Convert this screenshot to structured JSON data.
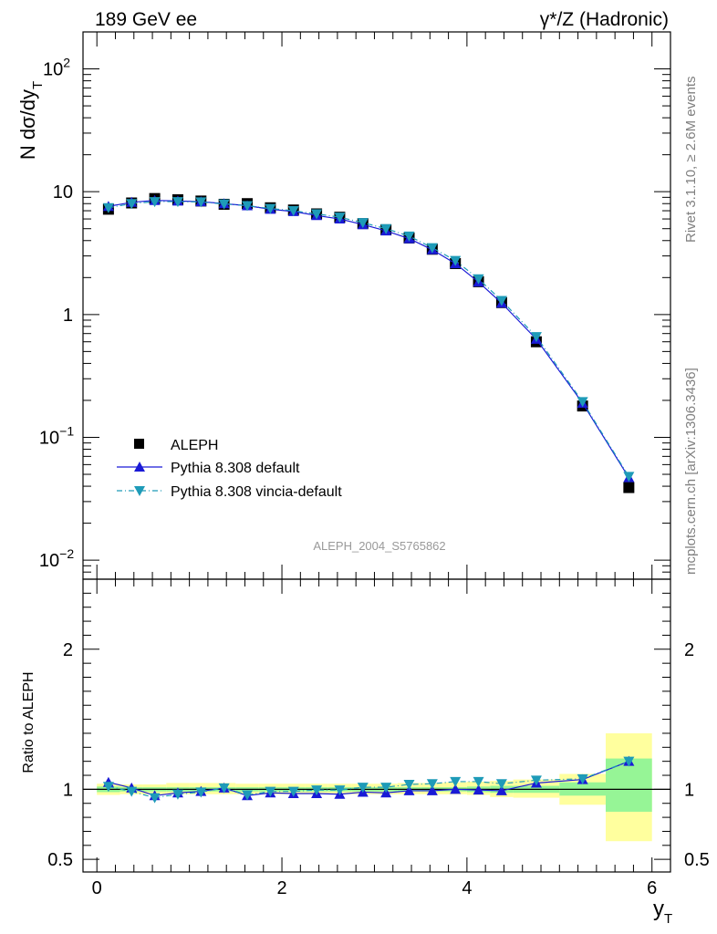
{
  "header": {
    "left": "189 GeV ee",
    "right": "γ*/Z (Hadronic)"
  },
  "side_labels": {
    "top": "Rivet 3.1.10, ≥ 2.6M events",
    "bottom": "mcplots.cern.ch [arXiv:1306.3436]"
  },
  "watermark": "ALEPH_2004_S5765862",
  "y_axis_label_main": "N dσ/dy",
  "y_axis_label_main_sub": "T",
  "y_axis_label_ratio": "Ratio to ALEPH",
  "x_axis_label": "y",
  "x_axis_label_sub": "T",
  "main_ticks": {
    "y": [
      {
        "v": 100,
        "text": "10",
        "sup": "2"
      },
      {
        "v": 10,
        "text": "10",
        "sup": ""
      },
      {
        "v": 1,
        "text": "1",
        "sup": ""
      },
      {
        "v": 0.1,
        "text": "10",
        "sup": "−1"
      },
      {
        "v": 0.01,
        "text": "10",
        "sup": "−2"
      }
    ]
  },
  "ratio_ticks": {
    "y": [
      {
        "v": 2,
        "text": "2"
      },
      {
        "v": 1,
        "text": "1"
      },
      {
        "v": 0.5,
        "text": "0.5"
      }
    ]
  },
  "x_ticks": [
    {
      "v": 0,
      "text": "0"
    },
    {
      "v": 2,
      "text": "2"
    },
    {
      "v": 4,
      "text": "4"
    },
    {
      "v": 6,
      "text": "6"
    }
  ],
  "colors": {
    "aleph": "#000000",
    "pythia": "#1a1ad6",
    "vincia": "#1e9bb8",
    "band_green": "#96f596",
    "band_yellow": "#ffff9e"
  },
  "chart_data": [
    {
      "type": "scatter",
      "xlim": [
        -0.15,
        6.2
      ],
      "ylim": [
        0.007,
        200
      ],
      "log_y": true,
      "legend": "bottom-left",
      "series": [
        {
          "name": "ALEPH",
          "x": [
            0.125,
            0.375,
            0.625,
            0.875,
            1.125,
            1.375,
            1.625,
            1.875,
            2.125,
            2.375,
            2.625,
            2.875,
            3.125,
            3.375,
            3.625,
            3.875,
            4.125,
            4.375,
            4.75,
            5.25,
            5.75
          ],
          "values": [
            7.2,
            8.1,
            8.8,
            8.6,
            8.4,
            7.9,
            8.0,
            7.4,
            7.1,
            6.6,
            6.2,
            5.5,
            4.9,
            4.2,
            3.4,
            2.6,
            1.85,
            1.25,
            0.6,
            0.18,
            0.039
          ]
        },
        {
          "name": "Pythia 8.308 default",
          "x": [
            0.125,
            0.375,
            0.625,
            0.875,
            1.125,
            1.375,
            1.625,
            1.875,
            2.125,
            2.375,
            2.625,
            2.875,
            3.125,
            3.375,
            3.625,
            3.875,
            4.125,
            4.375,
            4.75,
            5.25,
            5.75
          ],
          "values": [
            7.6,
            8.2,
            8.5,
            8.4,
            8.3,
            8.0,
            7.7,
            7.2,
            6.9,
            6.4,
            6.0,
            5.4,
            4.8,
            4.15,
            3.37,
            2.6,
            1.84,
            1.24,
            0.63,
            0.19,
            0.047
          ]
        },
        {
          "name": "Pythia 8.308 vincia-default",
          "x": [
            0.125,
            0.375,
            0.625,
            0.875,
            1.125,
            1.375,
            1.625,
            1.875,
            2.125,
            2.375,
            2.625,
            2.875,
            3.125,
            3.375,
            3.625,
            3.875,
            4.125,
            4.375,
            4.75,
            5.25,
            5.75
          ],
          "values": [
            7.4,
            8.0,
            8.3,
            8.3,
            8.25,
            7.95,
            7.7,
            7.3,
            7.0,
            6.6,
            6.2,
            5.6,
            5.0,
            4.35,
            3.5,
            2.75,
            1.95,
            1.3,
            0.66,
            0.195,
            0.048
          ]
        }
      ]
    },
    {
      "type": "line",
      "xlim": [
        -0.15,
        6.2
      ],
      "ylim": [
        0.41,
        2.5
      ],
      "ylabel": "Ratio to ALEPH",
      "reference_line": 1,
      "bands": {
        "edges": [
          0.0,
          0.25,
          0.5,
          0.75,
          1.0,
          1.25,
          1.5,
          1.75,
          2.0,
          2.25,
          2.5,
          2.75,
          3.0,
          3.25,
          3.5,
          3.75,
          4.0,
          4.25,
          4.5,
          5.0,
          5.5,
          6.0
        ],
        "green_lo": [
          0.98,
          0.985,
          0.985,
          0.985,
          0.985,
          0.985,
          0.985,
          0.985,
          0.985,
          0.985,
          0.985,
          0.985,
          0.985,
          0.985,
          0.985,
          0.985,
          0.98,
          0.975,
          0.975,
          0.955,
          0.84
        ],
        "green_hi": [
          1.02,
          1.015,
          1.015,
          1.015,
          1.015,
          1.015,
          1.015,
          1.015,
          1.015,
          1.015,
          1.015,
          1.015,
          1.015,
          1.015,
          1.015,
          1.015,
          1.02,
          1.025,
          1.025,
          1.05,
          1.22
        ],
        "yellow_lo": [
          0.96,
          0.965,
          0.965,
          0.965,
          0.965,
          0.965,
          0.965,
          0.965,
          0.965,
          0.965,
          0.965,
          0.965,
          0.965,
          0.965,
          0.965,
          0.965,
          0.96,
          0.945,
          0.94,
          0.89,
          0.63
        ],
        "yellow_hi": [
          1.04,
          1.035,
          1.035,
          1.045,
          1.045,
          1.045,
          1.04,
          1.04,
          1.04,
          1.04,
          1.04,
          1.04,
          1.04,
          1.045,
          1.045,
          1.05,
          1.055,
          1.06,
          1.07,
          1.11,
          1.4
        ]
      },
      "series": [
        {
          "name": "Pythia 8.308 default",
          "x": [
            0.125,
            0.375,
            0.625,
            0.875,
            1.125,
            1.375,
            1.625,
            1.875,
            2.125,
            2.375,
            2.625,
            2.875,
            3.125,
            3.375,
            3.625,
            3.875,
            4.125,
            4.375,
            4.75,
            5.25,
            5.75
          ],
          "values": [
            1.05,
            1.01,
            0.955,
            0.975,
            0.985,
            1.01,
            0.955,
            0.975,
            0.97,
            0.97,
            0.965,
            0.98,
            0.975,
            0.99,
            0.99,
            1.0,
            0.995,
            0.99,
            1.045,
            1.07,
            1.2
          ]
        },
        {
          "name": "Pythia 8.308 vincia-default",
          "x": [
            0.125,
            0.375,
            0.625,
            0.875,
            1.125,
            1.375,
            1.625,
            1.875,
            2.125,
            2.375,
            2.625,
            2.875,
            3.125,
            3.375,
            3.625,
            3.875,
            4.125,
            4.375,
            4.75,
            5.25,
            5.75
          ],
          "values": [
            1.02,
            0.985,
            0.94,
            0.965,
            0.98,
            1.01,
            0.96,
            0.985,
            0.985,
            0.995,
            0.995,
            1.015,
            1.015,
            1.035,
            1.04,
            1.055,
            1.055,
            1.04,
            1.065,
            1.075,
            1.2
          ]
        }
      ]
    }
  ]
}
